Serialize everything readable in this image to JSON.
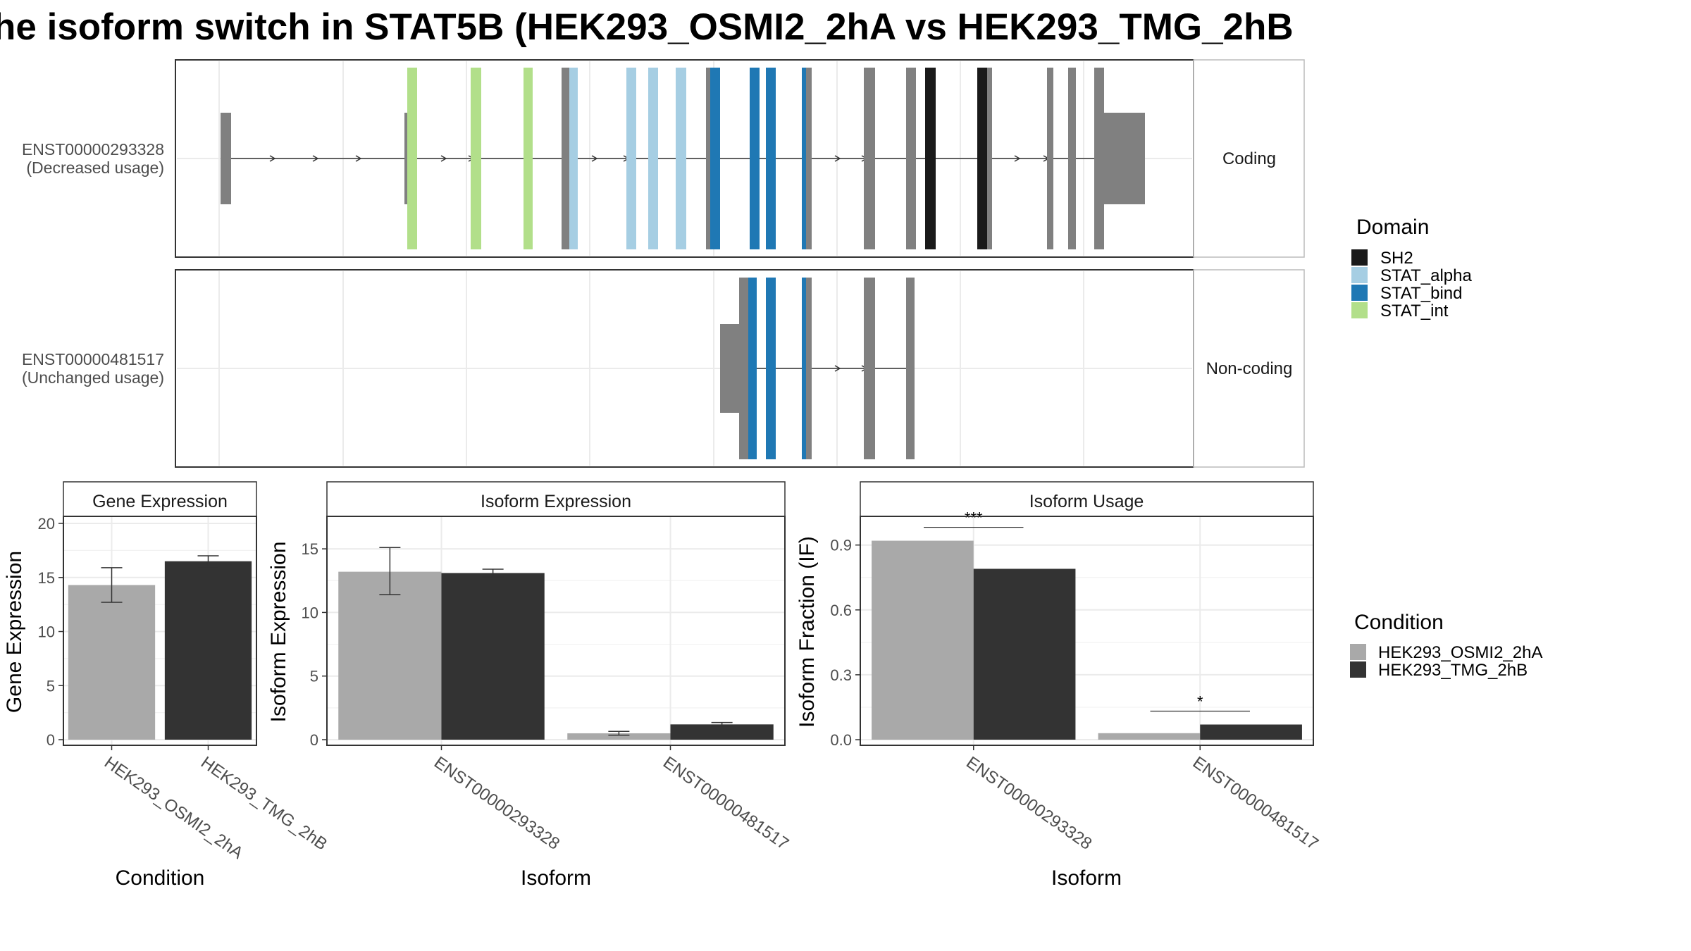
{
  "title": "he isoform switch in STAT5B (HEK293_OSMI2_2hA vs HEK293_TMG_2hB",
  "structure": {
    "transcripts": [
      {
        "id": "ENST00000293328",
        "usage": "(Decreased usage)",
        "type": "Coding"
      },
      {
        "id": "ENST00000481517",
        "usage": "(Unchanged usage)",
        "type": "Non-coding"
      }
    ]
  },
  "domain_legend": {
    "title": "Domain",
    "items": [
      {
        "label": "SH2",
        "color": "#1a1a1a"
      },
      {
        "label": "STAT_alpha",
        "color": "#a6cee3"
      },
      {
        "label": "STAT_bind",
        "color": "#1f78b4"
      },
      {
        "label": "STAT_int",
        "color": "#b2df8a"
      }
    ]
  },
  "condition_legend": {
    "title": "Condition",
    "items": [
      {
        "label": "HEK293_OSMI2_2hA",
        "color": "#a9a9a9"
      },
      {
        "label": "HEK293_TMG_2hB",
        "color": "#333333"
      }
    ]
  },
  "chart_data": [
    {
      "type": "bar",
      "title": "Gene Expression",
      "xlabel": "Condition",
      "ylabel": "Gene Expression",
      "categories": [
        "HEK293_OSMI2_2hA",
        "HEK293_TMG_2hB"
      ],
      "values": [
        14.3,
        16.5
      ],
      "errors": [
        [
          12.7,
          15.9
        ],
        [
          16.0,
          17.0
        ]
      ],
      "ylim": [
        0,
        20
      ],
      "yticks": [
        0,
        5,
        10,
        15,
        20
      ]
    },
    {
      "type": "bar",
      "title": "Isoform Expression",
      "xlabel": "Isoform",
      "ylabel": "Isoform Expression",
      "categories": [
        "ENST00000293328",
        "ENST00000481517"
      ],
      "series": [
        {
          "name": "HEK293_OSMI2_2hA",
          "values": [
            13.2,
            0.5
          ],
          "errors": [
            [
              11.4,
              15.1
            ],
            [
              0.35,
              0.65
            ]
          ]
        },
        {
          "name": "HEK293_TMG_2hB",
          "values": [
            13.1,
            1.2
          ],
          "errors": [
            [
              12.8,
              13.4
            ],
            [
              1.05,
              1.35
            ]
          ]
        }
      ],
      "ylim": [
        0,
        17
      ],
      "yticks": [
        0,
        5,
        10,
        15
      ]
    },
    {
      "type": "bar",
      "title": "Isoform Usage",
      "xlabel": "Isoform",
      "ylabel": "Isoform Fraction (IF)",
      "categories": [
        "ENST00000293328",
        "ENST00000481517"
      ],
      "series": [
        {
          "name": "HEK293_OSMI2_2hA",
          "values": [
            0.92,
            0.03
          ]
        },
        {
          "name": "HEK293_TMG_2hB",
          "values": [
            0.79,
            0.07
          ]
        }
      ],
      "significance": [
        "***",
        "*"
      ],
      "ylim": [
        0,
        1.0
      ],
      "yticks": [
        0.0,
        0.3,
        0.6,
        0.9
      ],
      "ytick_labels": [
        "0.0",
        "0.3",
        "0.6",
        "0.9"
      ]
    }
  ]
}
